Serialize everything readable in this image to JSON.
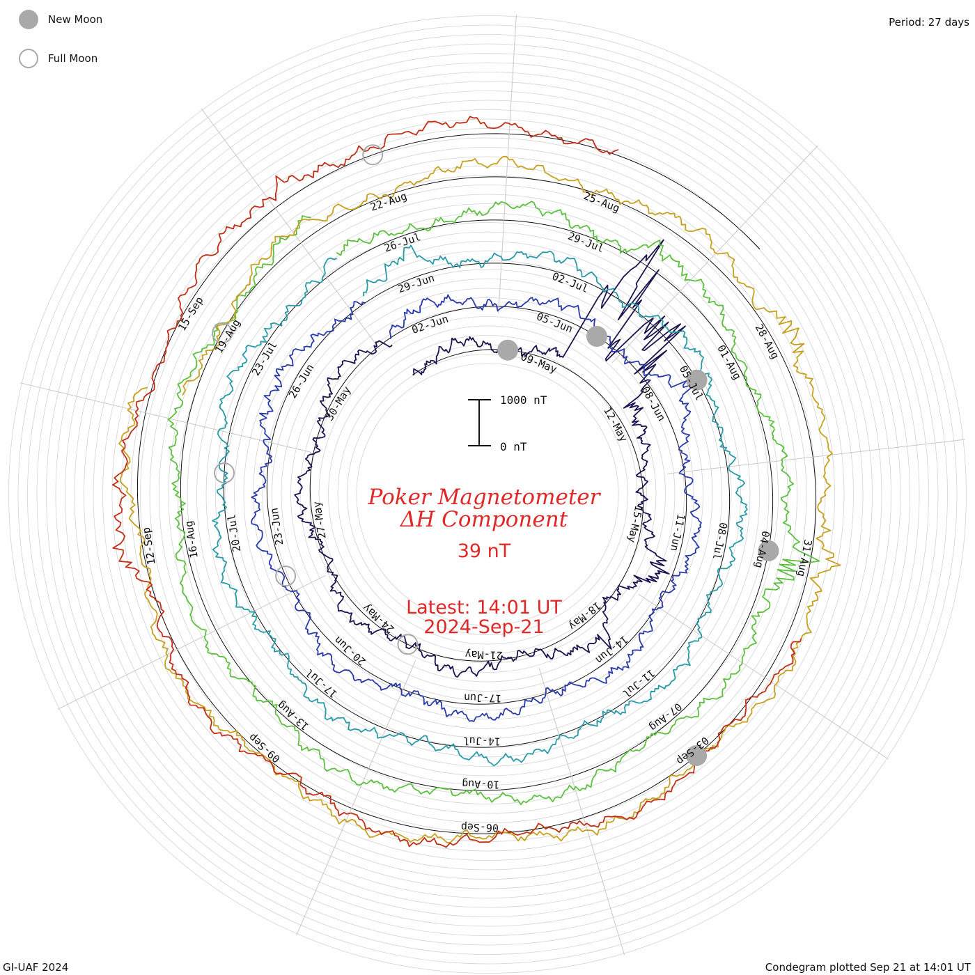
{
  "header": {
    "legend": [
      {
        "icon": "new-moon-icon",
        "label": "New Moon"
      },
      {
        "icon": "full-moon-icon",
        "label": "Full Moon"
      }
    ],
    "period": "Period: 27 days"
  },
  "center": {
    "title_line1": "Poker Magnetometer",
    "title_line2": "ΔH Component",
    "current_value": "39 nT",
    "latest_label": "Latest: 14:01 UT",
    "latest_date": "2024-Sep-21"
  },
  "scale_bar": {
    "top_label": "1000 nT",
    "bottom_label": "0 nT"
  },
  "footer": {
    "left": "GI-UAF 2024",
    "right": "Condegram plotted Sep 21 at 14:01 UT"
  },
  "colors": {
    "title": "#e02828",
    "moon_fill": "#a9a9a9",
    "grid": "#c8c8c8"
  },
  "chart_data": {
    "type": "line",
    "subtype": "condegram spiral",
    "period_days": 27,
    "units": "nT",
    "series": [
      {
        "name": "",
        "start": "2024-May-05",
        "end": "2024-Jun-01",
        "color": "#1a1450",
        "baseline_nT": 40,
        "storm_peaks": [
          {
            "date": "2024-May-10",
            "nT": 1600
          },
          {
            "date": "2024-May-11",
            "nT": 1100
          },
          {
            "date": "2024-May-16",
            "nT": 350
          },
          {
            "date": "2024-May-18",
            "nT": 250
          }
        ],
        "ticks": [
          "09-May",
          "12-May",
          "15-May",
          "18-May",
          "21-May",
          "24-May",
          "27-May",
          "30-May"
        ]
      },
      {
        "name": "",
        "start": "2024-Jun-01",
        "end": "2024-Jun-28",
        "color": "#2a3aa8",
        "baseline_nT": 60,
        "storm_peaks": [
          {
            "date": "2024-Jun-08",
            "nT": 200
          },
          {
            "date": "2024-Jun-25",
            "nT": 150
          }
        ],
        "ticks": [
          "02-Jun",
          "05-Jun",
          "08-Jun",
          "11-Jun",
          "14-Jun",
          "17-Jun",
          "20-Jun",
          "23-Jun",
          "26-Jun"
        ]
      },
      {
        "name": "",
        "start": "2024-Jun-28",
        "end": "2024-Jul-25",
        "color": "#2a9aa8",
        "baseline_nT": 60,
        "storm_peaks": [
          {
            "date": "2024-Jun-29",
            "nT": 180
          }
        ],
        "ticks": [
          "29-Jun",
          "02-Jul",
          "05-Jul",
          "08-Jul",
          "11-Jul",
          "14-Jul",
          "17-Jul",
          "20-Jul",
          "23-Jul"
        ]
      },
      {
        "name": "",
        "start": "2024-Jul-25",
        "end": "2024-Aug-21",
        "color": "#5dc040",
        "baseline_nT": 70,
        "storm_peaks": [
          {
            "date": "2024-Aug-04",
            "nT": 400
          },
          {
            "date": "2024-Jul-30",
            "nT": 200
          }
        ],
        "ticks": [
          "26-Jul",
          "29-Jul",
          "01-Aug",
          "04-Aug",
          "07-Aug",
          "10-Aug",
          "13-Aug",
          "16-Aug",
          "19-Aug"
        ]
      },
      {
        "name": "",
        "start": "2024-Aug-18",
        "end": "2024-Sep-14",
        "color": "#c8a020",
        "baseline_nT": 70,
        "storm_peaks": [
          {
            "date": "2024-Aug-28",
            "nT": 250
          },
          {
            "date": "2024-Aug-31",
            "nT": 200
          }
        ],
        "ticks": [
          "22-Aug",
          "25-Aug",
          "28-Aug",
          "31-Aug",
          "03-Sep",
          "06-Sep",
          "09-Sep",
          "12-Sep"
        ]
      },
      {
        "name": "",
        "start": "2024-Sep-01",
        "end": "2024-Sep-21",
        "color": "#c03018",
        "baseline_nT": 60,
        "storm_peaks": [
          {
            "date": "2024-Sep-12",
            "nT": 250
          },
          {
            "date": "2024-Sep-17",
            "nT": 200
          }
        ],
        "ticks": [
          "15-Sep",
          "12-Sep"
        ]
      }
    ],
    "new_moons": [
      "2024-May-08",
      "2024-Jun-06",
      "2024-Jul-05",
      "2024-Aug-04",
      "2024-Sep-03"
    ],
    "full_moons": [
      "2024-May-23",
      "2024-Jun-22",
      "2024-Jul-21",
      "2024-Aug-19",
      "2024-Sep-18"
    ],
    "grid": true
  }
}
